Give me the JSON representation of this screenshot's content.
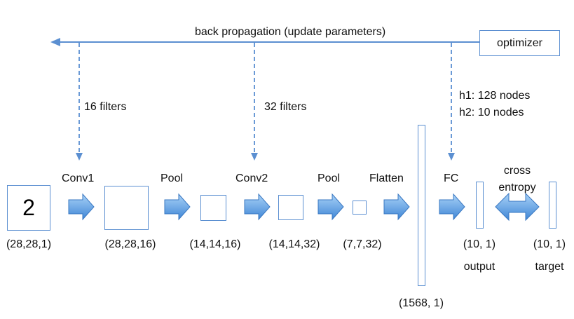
{
  "colors": {
    "line": "#5b8fd1",
    "arrow_fill_light": "#8fc0f0",
    "arrow_fill_dark": "#4a90d9",
    "text": "#111111"
  },
  "feedback": {
    "label": "back propagation (update parameters)",
    "optimizer": "optimizer",
    "conv1_filters": "16 filters",
    "conv2_filters": "32 filters",
    "fc_nodes_h1": "h1: 128 nodes",
    "fc_nodes_h2": "h2: 10 nodes"
  },
  "pipeline": {
    "input_digit": "2",
    "input_shape": "(28,28,1)",
    "conv1_label": "Conv1",
    "conv1_shape": "(28,28,16)",
    "pool1_label": "Pool",
    "pool1_shape": "(14,14,16)",
    "conv2_label": "Conv2",
    "conv2_shape": "(14,14,32)",
    "pool2_label": "Pool",
    "pool2_shape": "(7,7,32)",
    "flatten_label": "Flatten",
    "flatten_shape": "(1568, 1)",
    "fc_label": "FC",
    "output_shape": "(10, 1)",
    "output_label": "output",
    "loss_label_line1": "cross",
    "loss_label_line2": "entropy",
    "target_shape": "(10, 1)",
    "target_label": "target"
  }
}
